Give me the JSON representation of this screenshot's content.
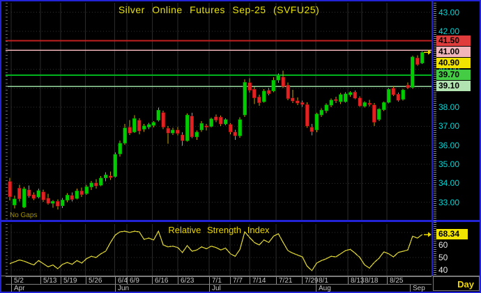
{
  "x_axis": {
    "interval_label": "Day",
    "date_ticks": [
      {
        "label": "5/2",
        "i": 0.3
      },
      {
        "label": "5/13",
        "i": 6.4
      },
      {
        "label": "5/19",
        "i": 10.6
      },
      {
        "label": "5/26",
        "i": 15.8
      },
      {
        "label": "6/4",
        "i": 21.9
      },
      {
        "label": "6/9",
        "i": 24.4
      },
      {
        "label": "6/16",
        "i": 29.7
      },
      {
        "label": "6/23",
        "i": 35.0
      },
      {
        "label": "7/1",
        "i": 41.6
      },
      {
        "label": "7/7",
        "i": 45.9
      },
      {
        "label": "7/14",
        "i": 50.0
      },
      {
        "label": "7/21",
        "i": 55.5
      },
      {
        "label": "7/29",
        "i": 60.9
      },
      {
        "label": "8/1",
        "i": 63.8
      },
      {
        "label": "8/13",
        "i": 70.5
      },
      {
        "label": "8/18",
        "i": 73.4
      },
      {
        "label": "8/25",
        "i": 78.6
      }
    ],
    "month_ticks": [
      {
        "label": "Apr",
        "i": 0.3
      },
      {
        "label": "Jun",
        "i": 21.9
      },
      {
        "label": "Jul",
        "i": 41.6
      },
      {
        "label": "Aug",
        "i": 63.8
      },
      {
        "label": "Sep",
        "i": 83.4
      }
    ]
  },
  "colors": {
    "up_candle": "#00cc00",
    "up_candle_edge": "#008800",
    "down_candle": "#e02222",
    "down_candle_edge": "#8a0000",
    "wick": "#c9a50a",
    "rsi_line": "#d4cc30",
    "axis_text_cyan": "#00d8d8",
    "title_yellow": "#e8e200",
    "grid": "#2b2b2b",
    "arrow": "#e8d800",
    "window_border": "#2222d6"
  },
  "chart_data": [
    {
      "type": "candlestick",
      "title": "Silver Online Futures Sep-25 (SVFU25)",
      "annotation": "No Gaps",
      "ylim": [
        32.0,
        43.5
      ],
      "y_ticks": [
        33,
        34,
        35,
        36,
        37,
        38,
        39,
        40,
        41,
        42,
        43
      ],
      "last_price": 40.9,
      "levels": [
        {
          "price": 41.5,
          "label": "41.50",
          "line_color": "#c22020",
          "line_width": 2,
          "label_bg": "#e03c3c"
        },
        {
          "price": 41.0,
          "label": "41.00",
          "line_color": "#efb3b8",
          "line_width": 1.5,
          "label_bg": "#f2b6ba"
        },
        {
          "price": 40.9,
          "label": "40.90",
          "line_color": null,
          "line_width": 0,
          "label_bg": "#f0e400"
        },
        {
          "price": 39.7,
          "label": "39.70",
          "line_color": "#00b41e",
          "line_width": 2,
          "label_bg": "#44cc44"
        },
        {
          "price": 39.1,
          "label": "39.10",
          "line_color": "#98d89e",
          "line_width": 1.5,
          "label_bg": "#b2e4b2"
        }
      ],
      "candles": [
        [
          34.1,
          34.28,
          33.1,
          33.3
        ],
        [
          32.85,
          33.35,
          32.68,
          33.18
        ],
        [
          33.75,
          33.92,
          33.05,
          33.18
        ],
        [
          32.75,
          33.82,
          32.7,
          33.72
        ],
        [
          33.65,
          33.88,
          33.25,
          33.33
        ],
        [
          33.4,
          33.52,
          33.12,
          33.2
        ],
        [
          33.27,
          33.72,
          33.2,
          33.62
        ],
        [
          33.55,
          33.66,
          33.02,
          33.12
        ],
        [
          33.22,
          33.45,
          32.88,
          32.95
        ],
        [
          32.95,
          33.12,
          32.72,
          33.05
        ],
        [
          33.05,
          33.15,
          32.62,
          32.8
        ],
        [
          32.82,
          33.22,
          32.7,
          33.12
        ],
        [
          33.1,
          33.48,
          33.0,
          33.38
        ],
        [
          33.36,
          33.52,
          33.05,
          33.15
        ],
        [
          33.2,
          33.72,
          33.15,
          33.6
        ],
        [
          33.6,
          33.78,
          33.28,
          33.4
        ],
        [
          33.45,
          33.92,
          33.4,
          33.82
        ],
        [
          33.8,
          34.12,
          33.65,
          34.02
        ],
        [
          34.02,
          34.22,
          33.72,
          33.85
        ],
        [
          33.9,
          34.38,
          33.85,
          34.28
        ],
        [
          34.28,
          34.58,
          34.1,
          34.45
        ],
        [
          34.4,
          34.62,
          34.18,
          34.3
        ],
        [
          34.35,
          35.62,
          34.3,
          35.52
        ],
        [
          35.55,
          36.25,
          35.4,
          36.12
        ],
        [
          36.12,
          37.12,
          36.02,
          36.92
        ],
        [
          36.95,
          37.32,
          36.55,
          36.65
        ],
        [
          36.7,
          37.58,
          36.65,
          37.42
        ],
        [
          37.32,
          37.42,
          36.58,
          36.75
        ],
        [
          36.85,
          37.12,
          36.7,
          37.02
        ],
        [
          36.95,
          37.18,
          36.85,
          37.1
        ],
        [
          37.05,
          37.28,
          36.95,
          37.22
        ],
        [
          37.32,
          37.98,
          37.25,
          37.86
        ],
        [
          37.72,
          37.82,
          36.85,
          36.95
        ],
        [
          36.9,
          37.02,
          36.08,
          36.65
        ],
        [
          36.65,
          36.92,
          36.55,
          36.8
        ],
        [
          36.8,
          36.96,
          36.52,
          36.62
        ],
        [
          36.55,
          36.68,
          35.98,
          36.25
        ],
        [
          36.25,
          37.68,
          36.2,
          37.6
        ],
        [
          37.55,
          37.72,
          36.38,
          36.45
        ],
        [
          36.45,
          36.78,
          36.28,
          36.7
        ],
        [
          36.8,
          37.28,
          36.7,
          37.16
        ],
        [
          37.02,
          37.12,
          36.78,
          36.95
        ],
        [
          37.0,
          37.46,
          36.95,
          37.4
        ],
        [
          37.5,
          37.62,
          37.22,
          37.32
        ],
        [
          37.48,
          37.56,
          37.02,
          37.12
        ],
        [
          37.12,
          37.42,
          37.05,
          37.35
        ],
        [
          37.1,
          37.16,
          36.58,
          36.7
        ],
        [
          36.7,
          36.82,
          36.28,
          36.5
        ],
        [
          36.5,
          37.48,
          36.4,
          37.36
        ],
        [
          37.6,
          39.48,
          37.5,
          39.32
        ],
        [
          39.3,
          39.52,
          38.78,
          38.9
        ],
        [
          38.95,
          39.06,
          38.18,
          38.5
        ],
        [
          38.55,
          38.66,
          38.08,
          38.24
        ],
        [
          38.3,
          38.96,
          38.24,
          38.86
        ],
        [
          38.9,
          39.02,
          38.62,
          38.72
        ],
        [
          38.86,
          39.58,
          38.8,
          39.42
        ],
        [
          39.42,
          39.78,
          39.28,
          39.68
        ],
        [
          39.6,
          39.92,
          39.02,
          39.1
        ],
        [
          39.18,
          39.3,
          38.38,
          38.46
        ],
        [
          38.5,
          38.92,
          38.22,
          38.32
        ],
        [
          38.35,
          38.52,
          38.12,
          38.22
        ],
        [
          38.25,
          38.36,
          38.02,
          38.14
        ],
        [
          38.15,
          38.26,
          36.92,
          37.02
        ],
        [
          36.95,
          37.12,
          36.52,
          36.72
        ],
        [
          36.8,
          37.72,
          36.68,
          37.65
        ],
        [
          37.6,
          37.96,
          37.5,
          37.86
        ],
        [
          37.82,
          38.2,
          37.7,
          38.12
        ],
        [
          38.1,
          38.46,
          38.0,
          38.38
        ],
        [
          38.42,
          38.56,
          38.22,
          38.34
        ],
        [
          38.3,
          38.76,
          38.18,
          38.68
        ],
        [
          38.3,
          38.8,
          38.25,
          38.72
        ],
        [
          38.65,
          38.85,
          38.55,
          38.78
        ],
        [
          38.8,
          38.88,
          38.42,
          38.48
        ],
        [
          38.5,
          38.58,
          38.02,
          38.08
        ],
        [
          38.05,
          38.32,
          37.98,
          38.26
        ],
        [
          38.22,
          38.4,
          38.05,
          38.15
        ],
        [
          38.12,
          38.22,
          37.02,
          37.22
        ],
        [
          37.35,
          37.95,
          37.28,
          37.9
        ],
        [
          37.88,
          38.3,
          37.8,
          38.26
        ],
        [
          38.26,
          39.02,
          38.2,
          38.96
        ],
        [
          39.0,
          39.1,
          38.6,
          38.66
        ],
        [
          38.7,
          38.78,
          38.3,
          38.36
        ],
        [
          38.42,
          38.98,
          38.35,
          38.92
        ],
        [
          39.18,
          39.3,
          38.95,
          39.02
        ],
        [
          39.05,
          40.72,
          38.98,
          40.66
        ],
        [
          40.6,
          40.74,
          40.18,
          40.26
        ],
        [
          40.32,
          40.96,
          40.28,
          40.9
        ]
      ]
    },
    {
      "type": "line",
      "title": "Relative Strength Index",
      "ylim": [
        35.5,
        76.7
      ],
      "y_ticks": [
        40,
        50,
        60
      ],
      "y_grid": [
        40,
        50,
        60,
        70
      ],
      "last_value": 68.34,
      "last_value_label": "68.34",
      "values": [
        45,
        46.5,
        48,
        47,
        45.5,
        44,
        47.5,
        45,
        42.5,
        44,
        41,
        44.5,
        46,
        44.5,
        47.5,
        45.5,
        49,
        51,
        50,
        53,
        55,
        62,
        68,
        70.5,
        71,
        70,
        71,
        70.5,
        64.5,
        65.5,
        64,
        71,
        60,
        58.5,
        59,
        58,
        54,
        59.5,
        55,
        56,
        58.5,
        57,
        59,
        58,
        56,
        57.5,
        53,
        51,
        56.5,
        70.5,
        66,
        62,
        60,
        64,
        62,
        67,
        69,
        62,
        55.5,
        53.5,
        52,
        50.5,
        43,
        39.5,
        45.5,
        47.5,
        49,
        51,
        50.5,
        53,
        55.5,
        56.5,
        53.5,
        50,
        44,
        41.5,
        46,
        49.5,
        54.5,
        53,
        50.5,
        54,
        55,
        56,
        67,
        65.5,
        68.34
      ]
    }
  ]
}
